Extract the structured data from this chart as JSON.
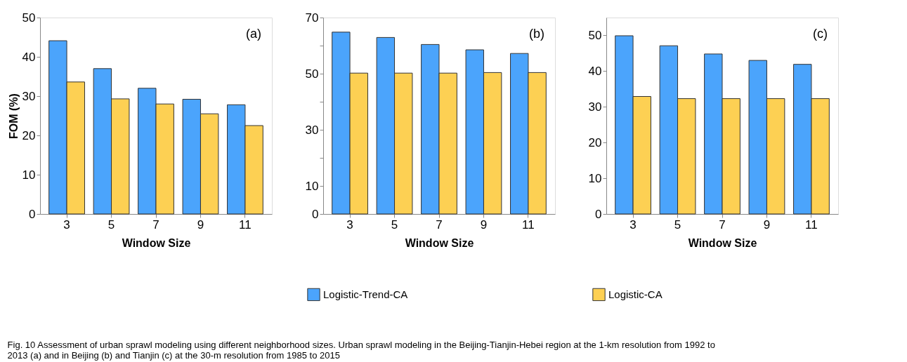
{
  "chart_data": [
    {
      "type": "bar",
      "categories": [
        "3",
        "5",
        "7",
        "9",
        "11"
      ],
      "xlabel": "Window Size",
      "ylabel": "FOM (%)",
      "ylim": [
        0,
        50
      ],
      "yticks": [
        0,
        10,
        20,
        30,
        40,
        50
      ],
      "grid": false,
      "legend": "bottom",
      "series": [
        {
          "name": "Logistic-Trend-CA",
          "color": "#4ba4fc",
          "values": [
            44.1,
            37.0,
            32.0,
            29.2,
            27.8
          ]
        },
        {
          "name": "Logistic-CA",
          "color": "#fdd053",
          "values": [
            33.6,
            29.3,
            28.0,
            25.5,
            22.5
          ]
        }
      ],
      "annotations": [
        "(a)",
        "Fig. 10 Assessment of urban sprawl modeling using different neighborhood sizes. Urban sprawl modeling in the Beijing-Tianjin-Hebei region at the 1-km resolution from 1992 to 2013 (a) and in Beijing (b) and Tianjin (c) at the 30-m resolution from 1985 to 2015"
      ]
    },
    {
      "type": "bar",
      "categories": [
        "3",
        "5",
        "7",
        "9",
        "11"
      ],
      "xlabel": "Window Size",
      "ylim": [
        0,
        70
      ],
      "yticks": [
        0,
        10,
        {
          "value": 20,
          "label": null
        },
        30,
        {
          "value": 40,
          "label": null
        },
        50,
        {
          "value": 60,
          "label": null
        },
        70
      ],
      "grid": false,
      "series": [
        {
          "name": "Logistic-Trend-CA",
          "color": "#4ba4fc",
          "values": [
            64.8,
            62.9,
            60.4,
            58.5,
            57.2
          ]
        },
        {
          "name": "Logistic-CA",
          "color": "#fdd053",
          "values": [
            50.2,
            50.2,
            50.2,
            50.4,
            50.4
          ]
        }
      ],
      "annotations": [
        "(b)"
      ]
    },
    {
      "type": "bar",
      "categories": [
        "3",
        "5",
        "7",
        "9",
        "11"
      ],
      "xlabel": "Window Size",
      "ylim": [
        0,
        55
      ],
      "yticks": [
        0,
        10,
        20,
        30,
        40,
        50
      ],
      "grid": false,
      "series": [
        {
          "name": "Logistic-Trend-CA",
          "color": "#4ba4fc",
          "values": [
            49.9,
            47.1,
            44.8,
            43.0,
            41.9
          ]
        },
        {
          "name": "Logistic-CA",
          "color": "#fdd053",
          "values": [
            32.9,
            32.3,
            32.3,
            32.3,
            32.3
          ]
        }
      ],
      "annotations": [
        "(c)"
      ]
    }
  ]
}
